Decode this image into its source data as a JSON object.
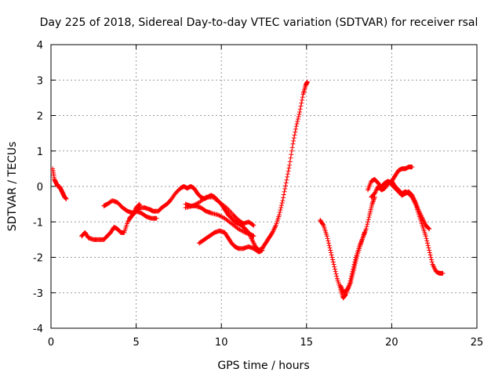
{
  "chart_data": {
    "type": "scatter",
    "title": "Day 225 of 2018, Sidereal Day-to-day VTEC variation (SDTVAR) for receiver rsal",
    "xlabel": "GPS time / hours",
    "ylabel": "SDTVAR / TECUs",
    "xlim": [
      0,
      25
    ],
    "ylim": [
      -4,
      4
    ],
    "xticks": [
      "0",
      "5",
      "10",
      "15",
      "20",
      "25"
    ],
    "yticks": [
      "-4",
      "-3",
      "-2",
      "-1",
      "0",
      "1",
      "2",
      "3",
      "4"
    ],
    "grid": true,
    "marker": "+",
    "series": [
      {
        "name": "rsal",
        "color": "#ff0000",
        "segments": [
          [
            [
              0.1,
              0.5
            ],
            [
              0.2,
              0.2
            ],
            [
              0.3,
              0.1
            ],
            [
              0.4,
              0.0
            ],
            [
              0.5,
              0.0
            ],
            [
              0.6,
              -0.1
            ],
            [
              0.7,
              -0.2
            ],
            [
              0.8,
              -0.3
            ],
            [
              0.9,
              -0.35
            ]
          ],
          [
            [
              1.8,
              -1.4
            ],
            [
              2.0,
              -1.3
            ],
            [
              2.2,
              -1.45
            ],
            [
              2.5,
              -1.5
            ],
            [
              2.8,
              -1.5
            ],
            [
              3.1,
              -1.5
            ],
            [
              3.3,
              -1.4
            ],
            [
              3.5,
              -1.3
            ],
            [
              3.7,
              -1.15
            ],
            [
              3.9,
              -1.2
            ],
            [
              4.1,
              -1.3
            ],
            [
              4.3,
              -1.3
            ],
            [
              4.5,
              -1.0
            ],
            [
              4.8,
              -0.8
            ],
            [
              5.0,
              -0.7
            ],
            [
              5.2,
              -0.6
            ],
            [
              5.5,
              -0.6
            ],
            [
              5.8,
              -0.65
            ],
            [
              6.0,
              -0.7
            ],
            [
              6.3,
              -0.7
            ],
            [
              6.5,
              -0.6
            ],
            [
              6.8,
              -0.5
            ],
            [
              7.0,
              -0.4
            ],
            [
              7.3,
              -0.2
            ],
            [
              7.6,
              -0.05
            ],
            [
              7.8,
              0.0
            ],
            [
              8.0,
              -0.05
            ],
            [
              8.2,
              -0.0
            ],
            [
              8.4,
              -0.05
            ],
            [
              8.6,
              -0.2
            ],
            [
              8.8,
              -0.3
            ],
            [
              9.0,
              -0.35
            ],
            [
              9.2,
              -0.3
            ],
            [
              9.4,
              -0.25
            ],
            [
              9.6,
              -0.3
            ],
            [
              9.8,
              -0.4
            ],
            [
              10.0,
              -0.5
            ],
            [
              10.2,
              -0.65
            ],
            [
              10.4,
              -0.8
            ],
            [
              10.6,
              -0.9
            ],
            [
              10.8,
              -1.0
            ],
            [
              11.0,
              -1.05
            ],
            [
              11.2,
              -1.1
            ],
            [
              11.4,
              -1.2
            ],
            [
              11.6,
              -1.3
            ],
            [
              11.8,
              -1.5
            ],
            [
              12.0,
              -1.7
            ],
            [
              12.2,
              -1.8
            ],
            [
              12.4,
              -1.75
            ],
            [
              12.6,
              -1.6
            ],
            [
              12.8,
              -1.45
            ],
            [
              13.0,
              -1.3
            ],
            [
              13.2,
              -1.1
            ],
            [
              13.4,
              -0.8
            ],
            [
              13.6,
              -0.4
            ],
            [
              13.8,
              0.1
            ],
            [
              14.0,
              0.6
            ],
            [
              14.2,
              1.2
            ],
            [
              14.4,
              1.7
            ],
            [
              14.6,
              2.1
            ],
            [
              14.8,
              2.6
            ],
            [
              14.95,
              2.85
            ],
            [
              15.05,
              2.95
            ]
          ],
          [
            [
              3.1,
              -0.55
            ],
            [
              3.3,
              -0.5
            ],
            [
              3.6,
              -0.4
            ],
            [
              3.9,
              -0.45
            ],
            [
              4.2,
              -0.6
            ],
            [
              4.5,
              -0.7
            ],
            [
              4.8,
              -0.75
            ],
            [
              5.0,
              -0.7
            ],
            [
              5.3,
              -0.75
            ],
            [
              5.6,
              -0.85
            ],
            [
              5.9,
              -0.9
            ],
            [
              6.2,
              -0.9
            ]
          ],
          [
            [
              4.6,
              -0.9
            ],
            [
              4.8,
              -0.8
            ],
            [
              5.0,
              -0.6
            ],
            [
              5.2,
              -0.5
            ]
          ],
          [
            [
              7.9,
              -0.5
            ],
            [
              8.2,
              -0.55
            ],
            [
              8.5,
              -0.55
            ],
            [
              8.8,
              -0.6
            ],
            [
              9.1,
              -0.7
            ],
            [
              9.4,
              -0.75
            ],
            [
              9.8,
              -0.8
            ],
            [
              10.2,
              -0.9
            ],
            [
              10.6,
              -1.05
            ],
            [
              11.0,
              -1.2
            ],
            [
              11.4,
              -1.3
            ],
            [
              11.7,
              -1.35
            ],
            [
              11.9,
              -1.4
            ]
          ],
          [
            [
              7.9,
              -0.6
            ],
            [
              8.3,
              -0.55
            ],
            [
              8.7,
              -0.45
            ],
            [
              9.1,
              -0.3
            ],
            [
              9.5,
              -0.3
            ],
            [
              9.9,
              -0.45
            ],
            [
              10.3,
              -0.6
            ],
            [
              10.7,
              -0.8
            ],
            [
              11.0,
              -0.95
            ],
            [
              11.3,
              -1.05
            ],
            [
              11.6,
              -1.0
            ],
            [
              11.9,
              -1.1
            ]
          ],
          [
            [
              8.7,
              -1.6
            ],
            [
              9.0,
              -1.5
            ],
            [
              9.3,
              -1.4
            ],
            [
              9.6,
              -1.3
            ],
            [
              9.9,
              -1.25
            ],
            [
              10.2,
              -1.3
            ],
            [
              10.4,
              -1.45
            ],
            [
              10.6,
              -1.6
            ],
            [
              10.8,
              -1.7
            ],
            [
              11.0,
              -1.75
            ],
            [
              11.3,
              -1.75
            ],
            [
              11.6,
              -1.7
            ],
            [
              11.9,
              -1.75
            ],
            [
              12.2,
              -1.85
            ],
            [
              12.4,
              -1.8
            ]
          ],
          [
            [
              15.8,
              -0.95
            ],
            [
              16.0,
              -1.1
            ],
            [
              16.2,
              -1.4
            ],
            [
              16.4,
              -1.8
            ],
            [
              16.6,
              -2.2
            ],
            [
              16.8,
              -2.6
            ],
            [
              17.0,
              -2.9
            ],
            [
              17.15,
              -3.15
            ],
            [
              17.3,
              -3.05
            ],
            [
              17.5,
              -2.8
            ],
            [
              17.7,
              -2.4
            ],
            [
              17.9,
              -2.0
            ],
            [
              18.1,
              -1.7
            ],
            [
              18.3,
              -1.45
            ],
            [
              18.5,
              -1.2
            ],
            [
              18.7,
              -0.8
            ],
            [
              18.85,
              -0.5
            ],
            [
              19.0,
              -0.3
            ]
          ],
          [
            [
              17.0,
              -2.8
            ],
            [
              17.2,
              -3.0
            ],
            [
              17.4,
              -2.9
            ],
            [
              17.6,
              -2.7
            ],
            [
              17.8,
              -2.3
            ],
            [
              18.0,
              -1.9
            ],
            [
              18.2,
              -1.6
            ],
            [
              18.4,
              -1.3
            ]
          ],
          [
            [
              18.6,
              -0.1
            ],
            [
              18.8,
              0.15
            ],
            [
              19.0,
              0.2
            ],
            [
              19.2,
              0.1
            ],
            [
              19.4,
              -0.05
            ],
            [
              19.6,
              0.05
            ],
            [
              19.8,
              0.1
            ],
            [
              20.0,
              0.15
            ],
            [
              20.2,
              0.3
            ],
            [
              20.4,
              0.45
            ],
            [
              20.6,
              0.5
            ],
            [
              20.8,
              0.5
            ],
            [
              21.0,
              0.55
            ],
            [
              21.2,
              0.55
            ]
          ],
          [
            [
              18.8,
              -0.3
            ],
            [
              19.0,
              -0.2
            ],
            [
              19.2,
              0.0
            ],
            [
              19.4,
              -0.1
            ],
            [
              19.6,
              -0.05
            ],
            [
              19.8,
              0.1
            ],
            [
              20.0,
              0.15
            ],
            [
              20.2,
              0.0
            ],
            [
              20.4,
              -0.1
            ],
            [
              20.6,
              -0.2
            ],
            [
              20.8,
              -0.15
            ],
            [
              21.0,
              -0.2
            ],
            [
              21.2,
              -0.3
            ],
            [
              21.4,
              -0.5
            ],
            [
              21.6,
              -0.8
            ],
            [
              21.8,
              -1.1
            ],
            [
              22.0,
              -1.4
            ],
            [
              22.2,
              -1.8
            ],
            [
              22.4,
              -2.2
            ],
            [
              22.6,
              -2.4
            ],
            [
              22.8,
              -2.45
            ],
            [
              23.0,
              -2.45
            ]
          ],
          [
            [
              19.2,
              -0.05
            ],
            [
              19.4,
              0.0
            ],
            [
              19.6,
              0.1
            ],
            [
              19.8,
              0.15
            ],
            [
              20.0,
              0.05
            ],
            [
              20.2,
              -0.05
            ],
            [
              20.4,
              -0.15
            ],
            [
              20.6,
              -0.25
            ],
            [
              20.8,
              -0.2
            ],
            [
              21.0,
              -0.15
            ],
            [
              21.2,
              -0.25
            ],
            [
              21.4,
              -0.45
            ],
            [
              21.6,
              -0.7
            ],
            [
              21.8,
              -0.9
            ],
            [
              22.0,
              -1.1
            ],
            [
              22.2,
              -1.2
            ]
          ]
        ]
      }
    ]
  }
}
